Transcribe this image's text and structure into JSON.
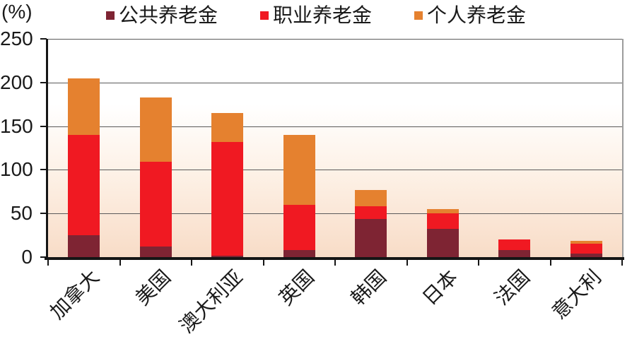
{
  "chart_data": {
    "type": "bar",
    "stacked": true,
    "title": "",
    "ylabel": "(%)",
    "xlabel": "",
    "categories": [
      "加拿大",
      "美国",
      "澳大利亚",
      "英国",
      "韩国",
      "日本",
      "法国",
      "意大利"
    ],
    "category_keys": [
      "canada",
      "usa",
      "australia",
      "uk",
      "korea",
      "japan",
      "france",
      "italy"
    ],
    "series": [
      {
        "key": "public",
        "name": "公共养老金",
        "color": "#7E2433",
        "values": [
          25,
          12,
          2,
          8,
          44,
          32,
          8,
          4
        ]
      },
      {
        "key": "occupational",
        "name": "职业养老金",
        "color": "#F01922",
        "values": [
          115,
          97,
          130,
          52,
          14,
          18,
          12,
          11
        ]
      },
      {
        "key": "personal",
        "name": "个人养老金",
        "color": "#E5812F",
        "values": [
          65,
          74,
          33,
          80,
          19,
          5,
          0,
          4
        ]
      }
    ],
    "totals": [
      205,
      183,
      165,
      140,
      77,
      55,
      20,
      19
    ],
    "ylim": [
      0,
      250
    ],
    "yticks": [
      0,
      50,
      100,
      150,
      200,
      250
    ],
    "grid": true,
    "legend_position": "top",
    "plot_colors": {
      "gridline": "#5a5a5a",
      "axis": "#151515",
      "plot_border_right": "#9c9c9c",
      "plot_bg_top": "#ffffff",
      "plot_bg_bottom": "#f8dcc7",
      "text": "#1a1a1a"
    }
  }
}
